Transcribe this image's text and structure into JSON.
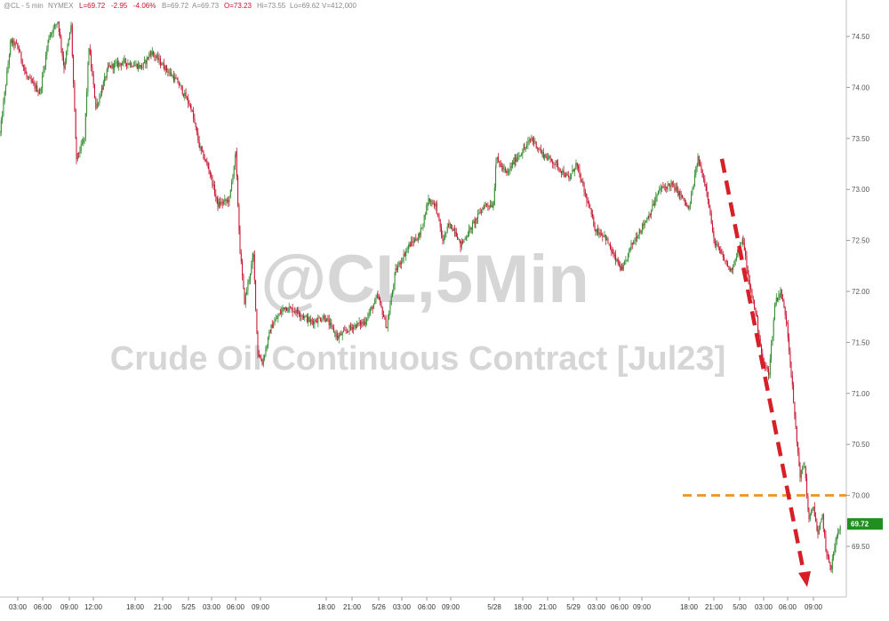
{
  "header": {
    "symbol": "@CL - 5 min",
    "exchange": "NYMEX",
    "last": "L=69.72",
    "change": "-2.95",
    "change_pct": "-4.06%",
    "bid": "B=69.72",
    "ask": "A=69.73",
    "open": "O=73.23",
    "high": "Hi=73.55",
    "low": "Lo=69.62",
    "volume": "V=412,000"
  },
  "watermark": {
    "line1": "@CL,5Min",
    "line2": "Crude Oil Continuous Contract [Jul23]"
  },
  "last_price_label": "69.72",
  "colors": {
    "up": "#2e8b2e",
    "down": "#c8102e",
    "arrow": "#d61f26",
    "level_line": "#f0962a",
    "last_box": "#1f8f1f"
  },
  "chart_data": {
    "type": "candlestick",
    "ylim": [
      69.0,
      74.85
    ],
    "y_ticks": [
      "74.50",
      "74.00",
      "73.50",
      "73.00",
      "72.50",
      "72.00",
      "71.50",
      "71.00",
      "70.50",
      "70.00",
      "69.50"
    ],
    "x_ticks": [
      "03:00",
      "06:00",
      "09:00",
      "12:00",
      "18:00",
      "21:00",
      "5/25",
      "03:00",
      "06:00",
      "09:00",
      "18:00",
      "21:00",
      "5/26",
      "03:00",
      "06:00",
      "09:00",
      "5/28",
      "18:00",
      "21:00",
      "5/29",
      "03:00",
      "06:00",
      "09:00",
      "18:00",
      "21:00",
      "5/30",
      "03:00",
      "06:00",
      "09:00"
    ],
    "price_path": [
      [
        0,
        73.55
      ],
      [
        12,
        74.45
      ],
      [
        20,
        74.4
      ],
      [
        30,
        74.1
      ],
      [
        45,
        73.95
      ],
      [
        55,
        74.5
      ],
      [
        65,
        74.65
      ],
      [
        72,
        74.2
      ],
      [
        80,
        74.6
      ],
      [
        86,
        73.3
      ],
      [
        95,
        73.5
      ],
      [
        100,
        74.4
      ],
      [
        108,
        73.8
      ],
      [
        115,
        74.0
      ],
      [
        122,
        74.2
      ],
      [
        140,
        74.25
      ],
      [
        160,
        74.2
      ],
      [
        170,
        74.35
      ],
      [
        185,
        74.2
      ],
      [
        200,
        74.05
      ],
      [
        215,
        73.8
      ],
      [
        225,
        73.4
      ],
      [
        235,
        73.2
      ],
      [
        245,
        72.85
      ],
      [
        258,
        72.9
      ],
      [
        265,
        73.35
      ],
      [
        270,
        72.4
      ],
      [
        275,
        71.9
      ],
      [
        285,
        72.35
      ],
      [
        290,
        71.4
      ],
      [
        295,
        71.3
      ],
      [
        305,
        71.65
      ],
      [
        320,
        71.85
      ],
      [
        335,
        71.8
      ],
      [
        350,
        71.7
      ],
      [
        365,
        71.75
      ],
      [
        380,
        71.55
      ],
      [
        395,
        71.65
      ],
      [
        410,
        71.7
      ],
      [
        425,
        71.95
      ],
      [
        435,
        71.65
      ],
      [
        445,
        72.2
      ],
      [
        460,
        72.45
      ],
      [
        472,
        72.55
      ],
      [
        482,
        72.9
      ],
      [
        490,
        72.85
      ],
      [
        498,
        72.5
      ],
      [
        505,
        72.65
      ],
      [
        512,
        72.6
      ],
      [
        518,
        72.45
      ],
      [
        525,
        72.55
      ],
      [
        535,
        72.7
      ],
      [
        545,
        72.85
      ],
      [
        555,
        72.85
      ],
      [
        558,
        73.3
      ],
      [
        570,
        73.15
      ],
      [
        580,
        73.3
      ],
      [
        590,
        73.4
      ],
      [
        598,
        73.5
      ],
      [
        610,
        73.35
      ],
      [
        625,
        73.25
      ],
      [
        640,
        73.1
      ],
      [
        648,
        73.25
      ],
      [
        660,
        72.9
      ],
      [
        670,
        72.6
      ],
      [
        680,
        72.55
      ],
      [
        690,
        72.35
      ],
      [
        700,
        72.2
      ],
      [
        710,
        72.45
      ],
      [
        720,
        72.6
      ],
      [
        730,
        72.75
      ],
      [
        742,
        73.0
      ],
      [
        755,
        73.05
      ],
      [
        765,
        72.95
      ],
      [
        775,
        72.8
      ],
      [
        785,
        73.3
      ],
      [
        795,
        73.0
      ],
      [
        803,
        72.5
      ],
      [
        812,
        72.35
      ],
      [
        822,
        72.2
      ],
      [
        830,
        72.4
      ],
      [
        836,
        72.5
      ],
      [
        842,
        72.1
      ],
      [
        850,
        71.8
      ],
      [
        858,
        71.3
      ],
      [
        865,
        71.2
      ],
      [
        872,
        71.9
      ],
      [
        878,
        72.0
      ],
      [
        885,
        71.7
      ],
      [
        890,
        71.2
      ],
      [
        895,
        70.65
      ],
      [
        900,
        70.2
      ],
      [
        905,
        70.3
      ],
      [
        910,
        69.75
      ],
      [
        915,
        69.9
      ],
      [
        920,
        69.6
      ],
      [
        925,
        69.8
      ],
      [
        930,
        69.4
      ],
      [
        935,
        69.3
      ],
      [
        940,
        69.55
      ],
      [
        946,
        69.72
      ]
    ],
    "level_line": {
      "value": 70.0,
      "color": "orange",
      "style": "dashed"
    },
    "arrow": {
      "from_x": 812,
      "from_y": 73.3,
      "to_x": 908,
      "to_y": 69.1,
      "color": "red",
      "style": "dashed"
    }
  }
}
